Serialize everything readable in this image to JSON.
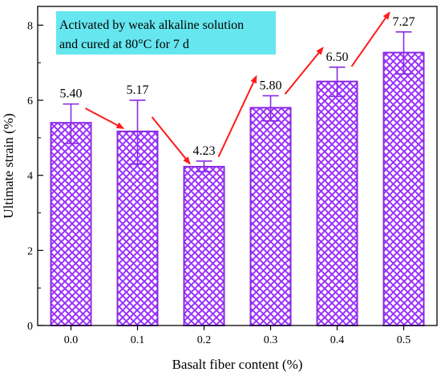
{
  "chart_data": {
    "type": "bar",
    "title": "",
    "xlabel": "Basalt fiber content (%)",
    "ylabel": "Ultimate strain (%)",
    "categories": [
      "0.0",
      "0.1",
      "0.2",
      "0.3",
      "0.4",
      "0.5"
    ],
    "values": [
      5.4,
      5.17,
      4.23,
      5.8,
      6.5,
      7.27
    ],
    "error_high": [
      5.9,
      6.0,
      4.38,
      6.12,
      6.88,
      7.82
    ],
    "error_low": [
      4.85,
      4.3,
      4.1,
      5.45,
      6.1,
      6.7
    ],
    "data_labels": [
      "5.40",
      "5.17",
      "4.23",
      "5.80",
      "6.50",
      "7.27"
    ],
    "ylim": [
      0,
      8.5
    ],
    "yticks": [
      "0",
      "2",
      "4",
      "6",
      "8"
    ],
    "grid": false,
    "legend": false,
    "annotation": {
      "lines": [
        "Activated by weak alkaline solution",
        "and cured at 80°C for 7 d"
      ],
      "background_color": "#66E6EE",
      "position": "top-left"
    },
    "trend_arrows": true,
    "colors": {
      "bar_fill": "#9B30FF",
      "bar_stroke": "#8A2BE2",
      "error_bar": "#8A2BE2",
      "arrow": "#FF1A1A",
      "axis": "#000000"
    }
  }
}
